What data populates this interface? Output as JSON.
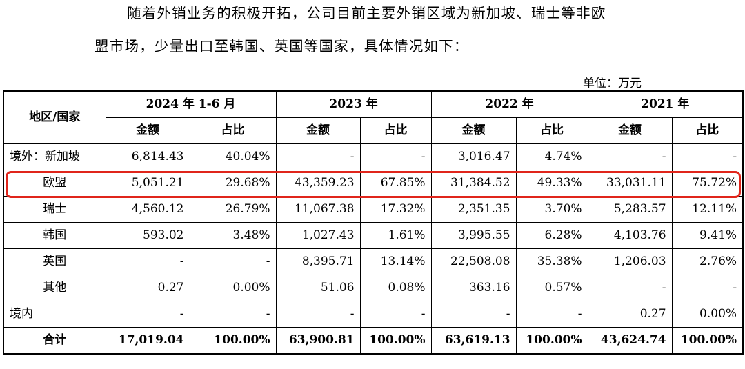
{
  "intro": {
    "line1": "随着外销业务的积极开拓，公司目前主要外销区域为新加坡、瑞士等非欧",
    "line2": "盟市场，少量出口至韩国、英国等国家，具体情况如下："
  },
  "unit_label": "单位：万元",
  "table": {
    "region_header": "地区/国家",
    "periods": [
      "2024 年 1-6 月",
      "2023 年",
      "2022 年",
      "2021 年"
    ],
    "sub_amount": "金额",
    "sub_ratio": "占比",
    "rows": [
      {
        "label": "境外：新加坡",
        "values": [
          "6,814.43",
          "40.04%",
          "-",
          "-",
          "3,016.47",
          "4.74%",
          "-",
          "-"
        ]
      },
      {
        "label": "欧盟",
        "values": [
          "5,051.21",
          "29.68%",
          "43,359.23",
          "67.85%",
          "31,384.52",
          "49.33%",
          "33,031.11",
          "75.72%"
        ]
      },
      {
        "label": "瑞士",
        "values": [
          "4,560.12",
          "26.79%",
          "11,067.38",
          "17.32%",
          "2,351.35",
          "3.70%",
          "5,283.57",
          "12.11%"
        ]
      },
      {
        "label": "韩国",
        "values": [
          "593.02",
          "3.48%",
          "1,027.43",
          "1.61%",
          "3,995.55",
          "6.28%",
          "4,103.76",
          "9.41%"
        ]
      },
      {
        "label": "英国",
        "values": [
          "-",
          "-",
          "8,395.71",
          "13.14%",
          "22,508.08",
          "35.38%",
          "1,206.03",
          "2.76%"
        ]
      },
      {
        "label": "其他",
        "values": [
          "0.27",
          "0.00%",
          "51.06",
          "0.08%",
          "363.16",
          "0.57%",
          "-",
          "-"
        ]
      },
      {
        "label": "境内",
        "values": [
          "-",
          "-",
          "-",
          "-",
          "-",
          "-",
          "0.27",
          "0.00%"
        ]
      }
    ],
    "total": {
      "label": "合计",
      "values": [
        "17,019.04",
        "100.00%",
        "63,900.81",
        "100.00%",
        "63,619.13",
        "100.00%",
        "43,624.74",
        "100.00%"
      ]
    }
  },
  "highlight_color": "#e0251b"
}
